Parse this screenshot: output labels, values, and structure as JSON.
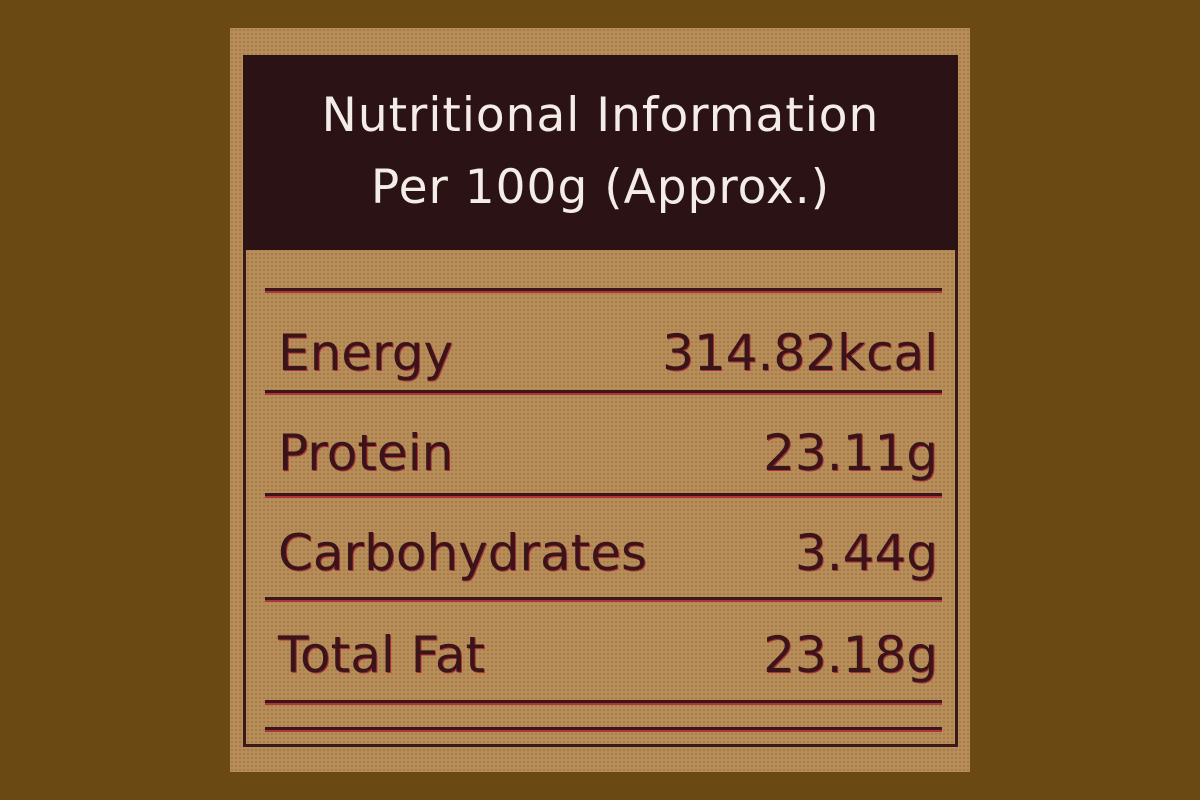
{
  "header": {
    "title": "Nutritional Information",
    "subtitle": "Per 100g (Approx.)"
  },
  "rows": [
    {
      "label": "Energy",
      "value": "314.82kcal"
    },
    {
      "label": "Protein",
      "value": "23.11g"
    },
    {
      "label": "Carbohydrates",
      "value": "3.44g"
    },
    {
      "label": "Total Fat",
      "value": "23.18g"
    }
  ],
  "colors": {
    "background": "#6a4912",
    "label": "#b88e5a",
    "header": "#2b1315",
    "text": "#3a1418",
    "rule": "#b0343c"
  }
}
